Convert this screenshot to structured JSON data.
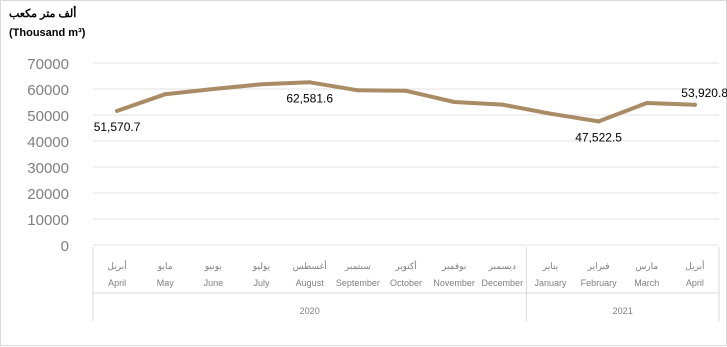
{
  "chart_data": {
    "type": "line",
    "ylabel_ar": "ألف متر مكعب",
    "ylabel_en": "(Thousand m³)",
    "yticks": [
      "0",
      "10000",
      "20000",
      "30000",
      "40000",
      "50000",
      "60000",
      "70000"
    ],
    "ylim": [
      0,
      70000
    ],
    "grid": true,
    "categories_ar": [
      "أبريل",
      "مايو",
      "يونيو",
      "يوليو",
      "أغسطس",
      "سبتمبر",
      "أكتوبر",
      "نوفمبر",
      "ديسمبر",
      "يناير",
      "فبراير",
      "مارس",
      "أبريل"
    ],
    "categories_en": [
      "April",
      "May",
      "June",
      "July",
      "August",
      "September",
      "October",
      "November",
      "December",
      "January",
      "February",
      "March",
      "April"
    ],
    "years": [
      {
        "label": "2020",
        "count": 9
      },
      {
        "label": "2021",
        "count": 4
      }
    ],
    "series": [
      {
        "values": [
          51570.7,
          58000,
          60000,
          61800,
          62581.6,
          59500,
          59300,
          55000,
          54000,
          50500,
          47522.5,
          54600,
          53920.8
        ]
      }
    ],
    "data_labels": [
      {
        "index": 0,
        "text": "51,570.7",
        "position": "below"
      },
      {
        "index": 4,
        "text": "62,581.6",
        "position": "below"
      },
      {
        "index": 10,
        "text": "47,522.5",
        "position": "below"
      },
      {
        "index": 12,
        "text": "53,920.8",
        "position": "above"
      }
    ],
    "line_color": "#a98c66"
  }
}
